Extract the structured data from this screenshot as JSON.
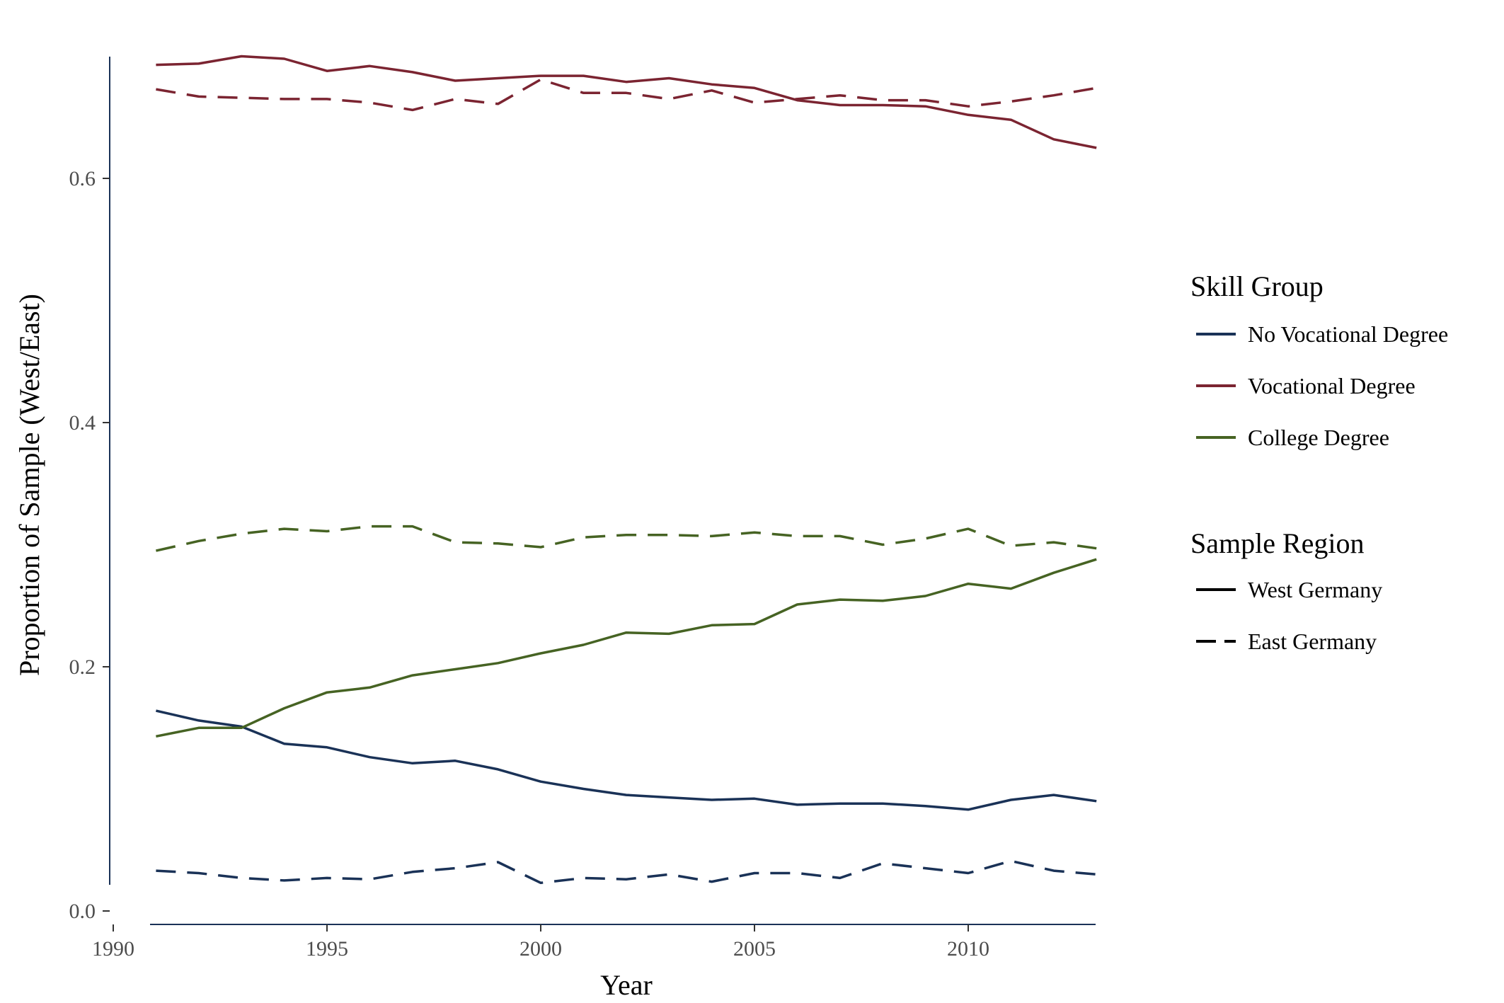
{
  "chart_data": {
    "type": "line",
    "title": "",
    "xlabel": "Year",
    "ylabel": "Proportion of Sample (West/East)",
    "xlim": [
      1990,
      2013
    ],
    "ylim": [
      0.0,
      0.7
    ],
    "x_ticks": [
      1990,
      1995,
      2000,
      2005,
      2010
    ],
    "y_ticks": [
      0.0,
      0.2,
      0.4,
      0.6
    ],
    "x_tick_labels": [
      "1990",
      "1995",
      "2000",
      "2005",
      "2010"
    ],
    "y_tick_labels": [
      "0.0",
      "0.2",
      "0.4",
      "0.6"
    ],
    "grid": false,
    "legend_placement": "right",
    "x": [
      1991,
      1992,
      1993,
      1994,
      1995,
      1996,
      1997,
      1998,
      1999,
      2000,
      2001,
      2002,
      2003,
      2004,
      2005,
      2006,
      2007,
      2008,
      2009,
      2010,
      2011,
      2012,
      2013
    ],
    "series": [
      {
        "group": "No Vocational Degree",
        "region": "West Germany",
        "color": "#1a3257",
        "dash": "solid",
        "values": [
          0.164,
          0.156,
          0.151,
          0.137,
          0.134,
          0.126,
          0.121,
          0.123,
          0.116,
          0.106,
          0.1,
          0.095,
          0.093,
          0.091,
          0.092,
          0.087,
          0.088,
          0.088,
          0.086,
          0.083,
          0.091,
          0.095,
          0.09
        ]
      },
      {
        "group": "No Vocational Degree",
        "region": "East Germany",
        "color": "#1a3257",
        "dash": "dashed",
        "values": [
          0.033,
          0.031,
          0.027,
          0.025,
          0.027,
          0.026,
          0.032,
          0.035,
          0.04,
          0.023,
          0.027,
          0.026,
          0.03,
          0.024,
          0.031,
          0.031,
          0.027,
          0.039,
          0.035,
          0.031,
          0.041,
          0.033,
          0.03
        ]
      },
      {
        "group": "Vocational Degree",
        "region": "West Germany",
        "color": "#7b2431",
        "dash": "solid",
        "values": [
          0.693,
          0.694,
          0.7,
          0.698,
          0.688,
          0.692,
          0.687,
          0.68,
          0.682,
          0.684,
          0.684,
          0.679,
          0.682,
          0.677,
          0.674,
          0.664,
          0.66,
          0.66,
          0.659,
          0.652,
          0.648,
          0.632,
          0.625
        ]
      },
      {
        "group": "Vocational Degree",
        "region": "East Germany",
        "color": "#7b2431",
        "dash": "dashed",
        "values": [
          0.673,
          0.667,
          0.666,
          0.665,
          0.665,
          0.662,
          0.656,
          0.665,
          0.661,
          0.681,
          0.67,
          0.67,
          0.665,
          0.672,
          0.662,
          0.665,
          0.668,
          0.664,
          0.664,
          0.659,
          0.663,
          0.668,
          0.674
        ]
      },
      {
        "group": "College Degree",
        "region": "West Germany",
        "color": "#466323",
        "dash": "solid",
        "values": [
          0.143,
          0.15,
          0.15,
          0.166,
          0.179,
          0.183,
          0.193,
          0.198,
          0.203,
          0.211,
          0.218,
          0.228,
          0.227,
          0.234,
          0.235,
          0.251,
          0.255,
          0.254,
          0.258,
          0.268,
          0.264,
          0.277,
          0.288
        ]
      },
      {
        "group": "College Degree",
        "region": "East Germany",
        "color": "#466323",
        "dash": "dashed",
        "values": [
          0.295,
          0.303,
          0.309,
          0.313,
          0.311,
          0.315,
          0.315,
          0.302,
          0.301,
          0.298,
          0.306,
          0.308,
          0.308,
          0.307,
          0.31,
          0.307,
          0.307,
          0.3,
          0.305,
          0.313,
          0.299,
          0.302,
          0.297
        ]
      }
    ],
    "legend": {
      "skill_title": "Skill Group",
      "skill_items": [
        {
          "label": "No Vocational Degree",
          "color": "#1a3257"
        },
        {
          "label": "Vocational Degree",
          "color": "#7b2431"
        },
        {
          "label": "College Degree",
          "color": "#466323"
        }
      ],
      "region_title": "Sample Region",
      "region_items": [
        {
          "label": "West Germany",
          "dash": "solid"
        },
        {
          "label": "East Germany",
          "dash": "dashed"
        }
      ]
    }
  }
}
